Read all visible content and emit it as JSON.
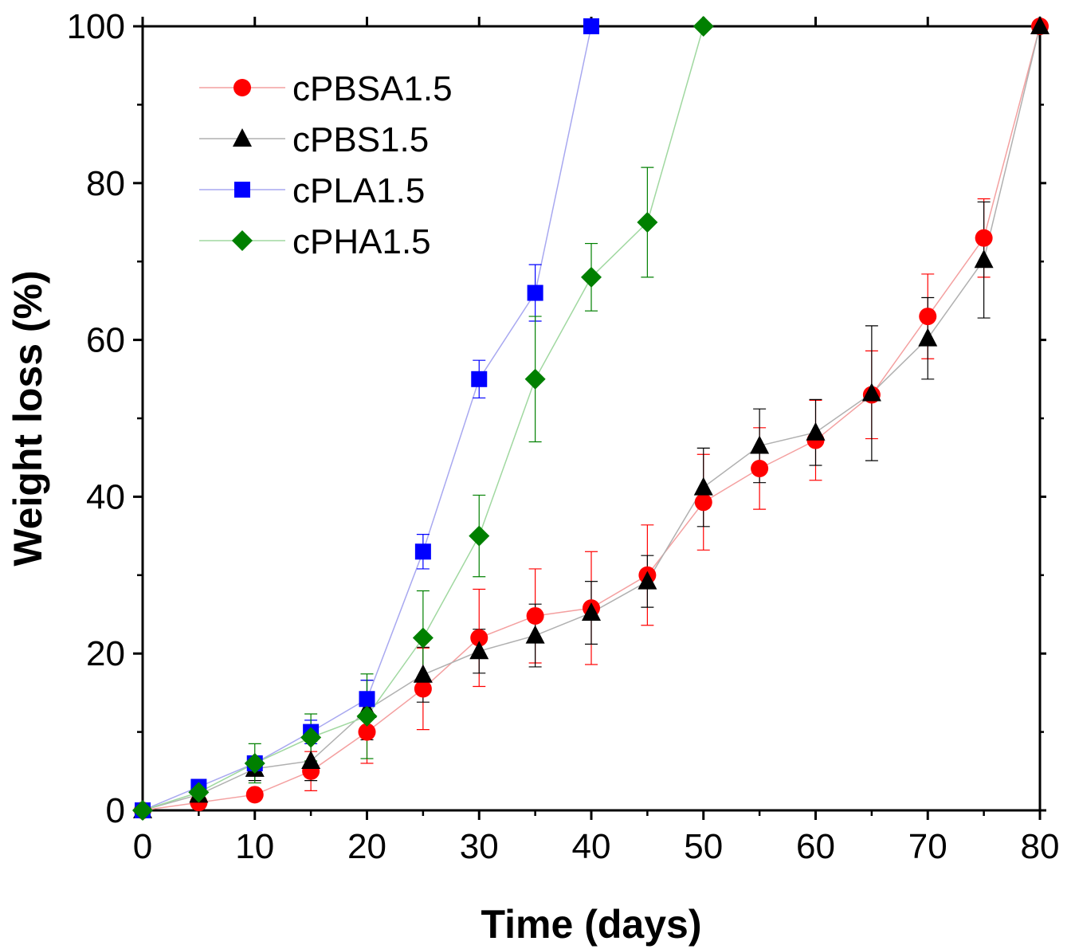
{
  "chart_data": {
    "type": "line",
    "title": "",
    "xlabel": "Time (days)",
    "ylabel": "Weight loss (%)",
    "xlim": [
      0,
      80
    ],
    "ylim": [
      0,
      100
    ],
    "xticks": [
      0,
      10,
      20,
      30,
      40,
      50,
      60,
      70,
      80
    ],
    "yticks": [
      0,
      20,
      40,
      60,
      80,
      100
    ],
    "grid": false,
    "legend_position": "top-left",
    "series": [
      {
        "name": "cPBSA1.5",
        "marker": "circle",
        "color": "#ff0000",
        "line_color": "#f4a0a0",
        "points": [
          {
            "x": 0,
            "y": 0,
            "err": 0
          },
          {
            "x": 5,
            "y": 1,
            "err": 0
          },
          {
            "x": 10,
            "y": 2,
            "err": 0
          },
          {
            "x": 15,
            "y": 5,
            "err": 2.5
          },
          {
            "x": 20,
            "y": 10,
            "err": 4
          },
          {
            "x": 25,
            "y": 15.5,
            "err": 5.2
          },
          {
            "x": 30,
            "y": 22,
            "err": 6.2
          },
          {
            "x": 35,
            "y": 24.8,
            "err": 6
          },
          {
            "x": 40,
            "y": 25.8,
            "err": 7.2
          },
          {
            "x": 45,
            "y": 30,
            "err": 6.4
          },
          {
            "x": 50,
            "y": 39.3,
            "err": 6.1
          },
          {
            "x": 55,
            "y": 43.6,
            "err": 5.2
          },
          {
            "x": 60,
            "y": 47.2,
            "err": 5.1
          },
          {
            "x": 65,
            "y": 53,
            "err": 5.6
          },
          {
            "x": 70,
            "y": 63,
            "err": 5.4
          },
          {
            "x": 75,
            "y": 73,
            "err": 5
          },
          {
            "x": 80,
            "y": 100,
            "err": 0
          }
        ]
      },
      {
        "name": "cPBS1.5",
        "marker": "triangle",
        "color": "#000000",
        "line_color": "#b0b0b0",
        "points": [
          {
            "x": 0,
            "y": 0,
            "err": 0
          },
          {
            "x": 5,
            "y": 2,
            "err": 0
          },
          {
            "x": 10,
            "y": 5.3,
            "err": 1.5
          },
          {
            "x": 15,
            "y": 6.3,
            "err": 2.5
          },
          {
            "x": 20,
            "y": 12.8,
            "err": 3.8
          },
          {
            "x": 25,
            "y": 17.3,
            "err": 3.5
          },
          {
            "x": 30,
            "y": 20.3,
            "err": 2.8
          },
          {
            "x": 35,
            "y": 22.3,
            "err": 4
          },
          {
            "x": 40,
            "y": 25.2,
            "err": 4
          },
          {
            "x": 45,
            "y": 29.2,
            "err": 3.3
          },
          {
            "x": 50,
            "y": 41.2,
            "err": 5
          },
          {
            "x": 55,
            "y": 46.5,
            "err": 4.7
          },
          {
            "x": 60,
            "y": 48.2,
            "err": 4.2
          },
          {
            "x": 65,
            "y": 53.2,
            "err": 8.6
          },
          {
            "x": 70,
            "y": 60.2,
            "err": 5.2
          },
          {
            "x": 75,
            "y": 70.2,
            "err": 7.4
          },
          {
            "x": 80,
            "y": 100,
            "err": 0
          }
        ]
      },
      {
        "name": "cPLA1.5",
        "marker": "square",
        "color": "#0000ff",
        "line_color": "#a8a8f0",
        "points": [
          {
            "x": 0,
            "y": 0,
            "err": 0
          },
          {
            "x": 5,
            "y": 3,
            "err": 0
          },
          {
            "x": 10,
            "y": 6,
            "err": 0
          },
          {
            "x": 15,
            "y": 10,
            "err": 1.5
          },
          {
            "x": 20,
            "y": 14.2,
            "err": 2.4
          },
          {
            "x": 25,
            "y": 33,
            "err": 2.2
          },
          {
            "x": 30,
            "y": 55,
            "err": 2.4
          },
          {
            "x": 35,
            "y": 66,
            "err": 3.6
          },
          {
            "x": 40,
            "y": 100,
            "err": 0
          }
        ]
      },
      {
        "name": "cPHA1.5",
        "marker": "diamond",
        "color": "#008000",
        "line_color": "#a0d8a0",
        "points": [
          {
            "x": 0,
            "y": 0,
            "err": 0
          },
          {
            "x": 5,
            "y": 2.3,
            "err": 0
          },
          {
            "x": 10,
            "y": 6,
            "err": 2.5
          },
          {
            "x": 15,
            "y": 9.3,
            "err": 3
          },
          {
            "x": 20,
            "y": 12,
            "err": 5.4
          },
          {
            "x": 25,
            "y": 22,
            "err": 6
          },
          {
            "x": 30,
            "y": 35,
            "err": 5.2
          },
          {
            "x": 35,
            "y": 55,
            "err": 8
          },
          {
            "x": 40,
            "y": 68,
            "err": 4.3
          },
          {
            "x": 45,
            "y": 75,
            "err": 7
          },
          {
            "x": 50,
            "y": 100,
            "err": 0
          }
        ]
      }
    ]
  }
}
